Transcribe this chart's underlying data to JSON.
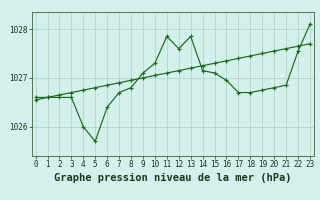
{
  "x": [
    0,
    1,
    2,
    3,
    4,
    5,
    6,
    7,
    8,
    9,
    10,
    11,
    12,
    13,
    14,
    15,
    16,
    17,
    18,
    19,
    20,
    21,
    22,
    23
  ],
  "line1": [
    1026.6,
    1026.6,
    1026.6,
    1026.6,
    1026.0,
    1025.7,
    1026.4,
    1026.7,
    1026.8,
    1027.1,
    1027.3,
    1027.85,
    1027.6,
    1027.85,
    1027.15,
    1027.1,
    1026.95,
    1026.7,
    1026.7,
    1026.75,
    1026.8,
    1026.85,
    1027.55,
    1028.1
  ],
  "line2": [
    1026.55,
    1026.6,
    1026.65,
    1026.7,
    1026.75,
    1026.8,
    1026.85,
    1026.9,
    1026.95,
    1027.0,
    1027.05,
    1027.1,
    1027.15,
    1027.2,
    1027.25,
    1027.3,
    1027.35,
    1027.4,
    1027.45,
    1027.5,
    1027.55,
    1027.6,
    1027.65,
    1027.7
  ],
  "line1_color": "#1a6b1a",
  "line2_color": "#1a6b1a",
  "bg_color": "#d4f0ec",
  "grid_color": "#b0d8cc",
  "title": "Graphe pression niveau de la mer (hPa)",
  "xlabel_tick_labels": [
    "0",
    "1",
    "2",
    "3",
    "4",
    "5",
    "6",
    "7",
    "8",
    "9",
    "10",
    "11",
    "12",
    "13",
    "14",
    "15",
    "16",
    "17",
    "18",
    "19",
    "20",
    "21",
    "22",
    "23"
  ],
  "yticks": [
    1026,
    1027,
    1028
  ],
  "ylim": [
    1025.4,
    1028.35
  ],
  "xlim": [
    -0.3,
    23.3
  ],
  "title_fontsize": 7.5,
  "tick_fontsize": 5.5
}
